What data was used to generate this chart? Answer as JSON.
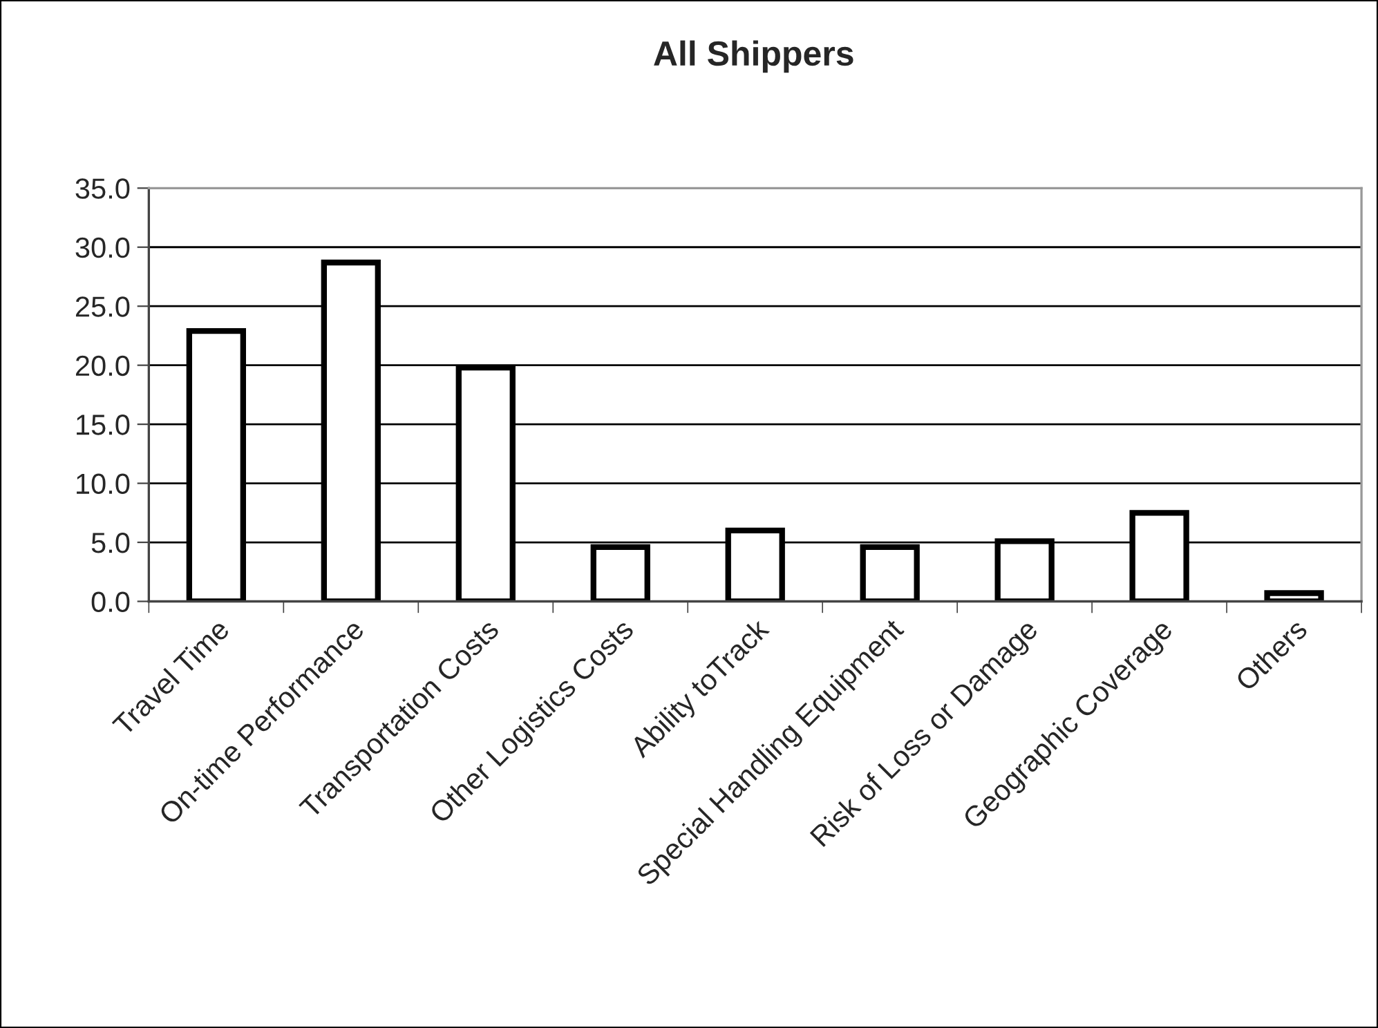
{
  "chart_data": {
    "type": "bar",
    "title": "All Shippers",
    "categories": [
      "Travel Time",
      "On-time Performance",
      "Transportation Costs",
      "Other Logistics Costs",
      "Ability toTrack",
      "Special Handling Equipment",
      "Risk of Loss or Damage",
      "Geographic Coverage",
      "Others"
    ],
    "values": [
      22.9,
      28.7,
      19.8,
      4.6,
      6.0,
      4.6,
      5.1,
      7.5,
      0.7
    ],
    "color": "#ffffff",
    "ylim": [
      0,
      35
    ],
    "yticks": [
      {
        "value": 0,
        "label": "0.0"
      },
      {
        "value": 5,
        "label": "5.0"
      },
      {
        "value": 10,
        "label": "10.0"
      },
      {
        "value": 15,
        "label": "15.0"
      },
      {
        "value": 20,
        "label": "20.0"
      },
      {
        "value": 25,
        "label": "25.0"
      },
      {
        "value": 30,
        "label": "30.0"
      },
      {
        "value": 35,
        "label": "35.0"
      }
    ],
    "grid": "y",
    "legend": false
  }
}
